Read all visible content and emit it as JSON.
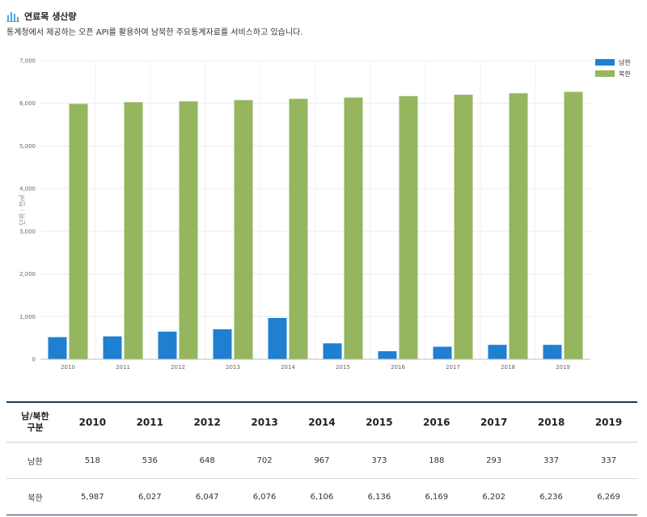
{
  "header": {
    "title": "연료목 생산량",
    "subtitle": "통계청에서 제공하는 오픈 API를 활용하여 남북한 주요통계자료를 서비스하고 있습니다.",
    "icon": "bar-chart-icon"
  },
  "chart_data": {
    "type": "bar",
    "title": "",
    "xlabel": "",
    "ylabel": "단위 : 천㎥",
    "categories": [
      "2010",
      "2011",
      "2012",
      "2013",
      "2014",
      "2015",
      "2016",
      "2017",
      "2018",
      "2019"
    ],
    "series": [
      {
        "name": "남한",
        "color": "#1f7fd1",
        "values": [
          518,
          536,
          648,
          702,
          967,
          373,
          188,
          293,
          337,
          337
        ]
      },
      {
        "name": "북한",
        "color": "#95b65e",
        "values": [
          5987,
          6027,
          6047,
          6076,
          6106,
          6136,
          6169,
          6202,
          6236,
          6269
        ]
      }
    ],
    "ylim": [
      0,
      7000
    ],
    "yticks": [
      "0",
      "1,000",
      "2,000",
      "3,000",
      "4,000",
      "5,000",
      "6,000",
      "7,000"
    ],
    "grid": true,
    "legend_position": "top-right"
  },
  "table": {
    "header_first": [
      "남/북한",
      "구분"
    ],
    "years": [
      "2010",
      "2011",
      "2012",
      "2013",
      "2014",
      "2015",
      "2016",
      "2017",
      "2018",
      "2019"
    ],
    "rows": [
      {
        "label": "남한",
        "values": [
          "518",
          "536",
          "648",
          "702",
          "967",
          "373",
          "188",
          "293",
          "337",
          "337"
        ]
      },
      {
        "label": "북한",
        "values": [
          "5,987",
          "6,027",
          "6,047",
          "6,076",
          "6,106",
          "6,136",
          "6,169",
          "6,202",
          "6,236",
          "6,269"
        ]
      }
    ]
  }
}
